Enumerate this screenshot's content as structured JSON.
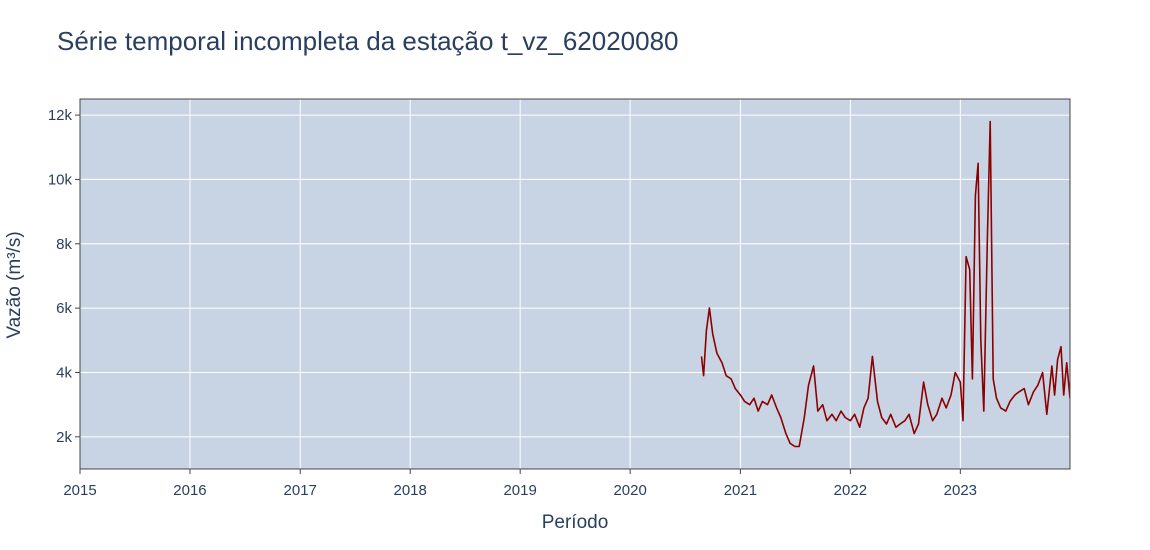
{
  "chart_data": {
    "type": "line",
    "title": "Série temporal incompleta da estação t_vz_62020080",
    "xlabel": "Período",
    "ylabel": "Vazão (m³/s)",
    "xlim": [
      "2015-01-01",
      "2023-12-31"
    ],
    "ylim": [
      1000,
      12500
    ],
    "x_ticks": [
      "2015",
      "2016",
      "2017",
      "2018",
      "2019",
      "2020",
      "2021",
      "2022",
      "2023"
    ],
    "y_ticks": [
      {
        "value": 2000,
        "label": "2k"
      },
      {
        "value": 4000,
        "label": "4k"
      },
      {
        "value": 6000,
        "label": "6k"
      },
      {
        "value": 8000,
        "label": "8k"
      },
      {
        "value": 10000,
        "label": "10k"
      },
      {
        "value": 12000,
        "label": "12k"
      }
    ],
    "grid": true,
    "colors": {
      "plot_bg": "#c8d4e3",
      "line": "#8b0000",
      "grid": "#ffffff",
      "text": "#2a3f5f"
    },
    "series": [
      {
        "x": [
          "2020-08-25",
          "2020-09-01",
          "2020-09-10",
          "2020-09-20",
          "2020-10-01",
          "2020-10-15",
          "2020-11-01",
          "2020-11-15",
          "2020-12-01",
          "2020-12-15",
          "2021-01-01",
          "2021-01-15",
          "2021-02-01",
          "2021-02-15",
          "2021-03-01",
          "2021-03-15",
          "2021-04-01",
          "2021-04-15",
          "2021-05-01",
          "2021-05-15",
          "2021-06-01",
          "2021-06-15",
          "2021-07-01",
          "2021-07-15",
          "2021-08-01",
          "2021-08-15",
          "2021-09-01",
          "2021-09-15",
          "2021-10-01",
          "2021-10-15",
          "2021-11-01",
          "2021-11-15",
          "2021-12-01",
          "2021-12-15",
          "2022-01-01",
          "2022-01-15",
          "2022-02-01",
          "2022-02-15",
          "2022-03-01",
          "2022-03-15",
          "2022-04-01",
          "2022-04-15",
          "2022-05-01",
          "2022-05-15",
          "2022-06-01",
          "2022-06-15",
          "2022-07-01",
          "2022-07-15",
          "2022-08-01",
          "2022-08-15",
          "2022-09-01",
          "2022-09-15",
          "2022-10-01",
          "2022-10-15",
          "2022-11-01",
          "2022-11-15",
          "2022-12-01",
          "2022-12-15",
          "2023-01-01",
          "2023-01-10",
          "2023-01-20",
          "2023-02-01",
          "2023-02-10",
          "2023-02-20",
          "2023-03-01",
          "2023-03-10",
          "2023-03-20",
          "2023-04-01",
          "2023-04-10",
          "2023-04-20",
          "2023-05-01",
          "2023-05-15",
          "2023-06-01",
          "2023-06-15",
          "2023-07-01",
          "2023-07-15",
          "2023-08-01",
          "2023-08-15",
          "2023-09-01",
          "2023-09-15",
          "2023-10-01",
          "2023-10-15",
          "2023-11-01",
          "2023-11-10",
          "2023-11-20",
          "2023-12-01",
          "2023-12-10",
          "2023-12-20",
          "2023-12-31"
        ],
        "y": [
          4500,
          3900,
          5300,
          6000,
          5200,
          4600,
          4300,
          3900,
          3800,
          3500,
          3300,
          3100,
          3000,
          3200,
          2800,
          3100,
          3000,
          3300,
          2900,
          2600,
          2100,
          1800,
          1700,
          1700,
          2600,
          3600,
          4200,
          2800,
          3000,
          2500,
          2700,
          2500,
          2800,
          2600,
          2500,
          2700,
          2300,
          2900,
          3200,
          4500,
          3100,
          2600,
          2400,
          2700,
          2300,
          2400,
          2500,
          2700,
          2100,
          2400,
          3700,
          3000,
          2500,
          2700,
          3200,
          2900,
          3300,
          4000,
          3700,
          2500,
          7600,
          7200,
          3800,
          9500,
          10500,
          5000,
          2800,
          8200,
          11800,
          3800,
          3200,
          2900,
          2800,
          3100,
          3300,
          3400,
          3500,
          3000,
          3400,
          3600,
          4000,
          2700,
          4200,
          3300,
          4400,
          4800,
          3300,
          4300,
          3200
        ]
      }
    ]
  }
}
